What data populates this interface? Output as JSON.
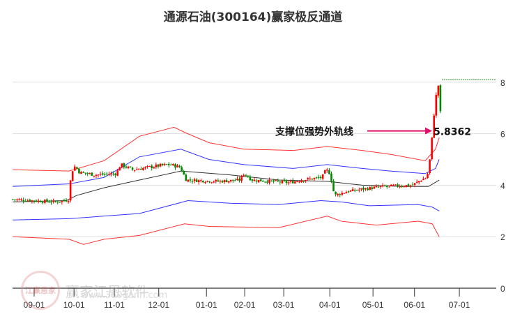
{
  "chart_data": {
    "type": "candlestick",
    "title": "通源石油(300164)赢家极反通道",
    "x_unit": "months since 09-01",
    "xticks": [
      {
        "t": 0,
        "label": "09-01"
      },
      {
        "t": 0.97,
        "label": "10-01"
      },
      {
        "t": 1.95,
        "label": "11-01"
      },
      {
        "t": 3.03,
        "label": "12-01"
      },
      {
        "t": 4.19,
        "label": "01-01"
      },
      {
        "t": 5.12,
        "label": "02-01"
      },
      {
        "t": 6.07,
        "label": "03-01"
      },
      {
        "t": 7.19,
        "label": "04-01"
      },
      {
        "t": 8.24,
        "label": "05-01"
      },
      {
        "t": 9.25,
        "label": "06-01"
      },
      {
        "t": 10.34,
        "label": "07-01"
      }
    ],
    "yticks": [
      0,
      2,
      4,
      6,
      8
    ],
    "ylim": [
      0,
      8.9
    ],
    "close_keypoints": [
      [
        -0.52,
        3.45
      ],
      [
        0,
        3.4
      ],
      [
        0.5,
        3.35
      ],
      [
        0.75,
        3.4
      ],
      [
        0.85,
        3.45
      ],
      [
        0.9,
        4.5
      ],
      [
        1.0,
        4.75
      ],
      [
        1.1,
        4.5
      ],
      [
        1.5,
        4.4
      ],
      [
        2.0,
        4.45
      ],
      [
        2.1,
        4.8
      ],
      [
        2.4,
        4.6
      ],
      [
        3.0,
        4.75
      ],
      [
        3.3,
        4.8
      ],
      [
        3.55,
        4.7
      ],
      [
        3.7,
        4.2
      ],
      [
        4.5,
        4.15
      ],
      [
        5.0,
        4.2
      ],
      [
        5.1,
        4.45
      ],
      [
        5.3,
        4.2
      ],
      [
        6.2,
        4.1
      ],
      [
        6.5,
        4.2
      ],
      [
        7.0,
        4.3
      ],
      [
        7.1,
        4.6
      ],
      [
        7.2,
        4.45
      ],
      [
        7.3,
        3.6
      ],
      [
        7.6,
        3.75
      ],
      [
        8.0,
        3.85
      ],
      [
        8.5,
        3.95
      ],
      [
        9.2,
        4.0
      ],
      [
        9.4,
        4.2
      ],
      [
        9.55,
        4.3
      ],
      [
        9.6,
        4.7
      ],
      [
        9.65,
        5.4
      ],
      [
        9.7,
        6.3
      ],
      [
        9.75,
        7.3
      ],
      [
        9.8,
        7.6
      ],
      [
        9.85,
        8.1
      ],
      [
        9.88,
        6.8
      ]
    ],
    "channel": {
      "outer_upper": [
        [
          -0.52,
          4.6
        ],
        [
          0.85,
          4.55
        ],
        [
          1.7,
          4.95
        ],
        [
          2.56,
          5.9
        ],
        [
          3.4,
          6.25
        ],
        [
          3.66,
          6.05
        ],
        [
          4.25,
          5.65
        ],
        [
          5.1,
          5.4
        ],
        [
          6.3,
          5.35
        ],
        [
          7.13,
          5.5
        ],
        [
          7.98,
          5.35
        ],
        [
          8.66,
          5.2
        ],
        [
          9.51,
          4.95
        ],
        [
          9.76,
          5.4
        ],
        [
          9.85,
          5.85
        ]
      ],
      "inner_upper": [
        [
          -0.52,
          3.95
        ],
        [
          0.85,
          4.05
        ],
        [
          1.7,
          4.3
        ],
        [
          2.56,
          5.1
        ],
        [
          3.57,
          5.4
        ],
        [
          4.25,
          5.0
        ],
        [
          5.1,
          4.8
        ],
        [
          6.3,
          4.65
        ],
        [
          7.13,
          4.8
        ],
        [
          7.98,
          4.65
        ],
        [
          8.66,
          4.55
        ],
        [
          9.51,
          4.45
        ],
        [
          9.76,
          4.65
        ],
        [
          9.85,
          5.0
        ]
      ],
      "middle": [
        [
          -0.52,
          3.35
        ],
        [
          0.78,
          3.4
        ],
        [
          1.03,
          3.6
        ],
        [
          1.7,
          3.9
        ],
        [
          2.56,
          4.2
        ],
        [
          3.57,
          4.55
        ],
        [
          4.76,
          4.4
        ],
        [
          5.95,
          4.2
        ],
        [
          7.13,
          4.15
        ],
        [
          7.98,
          4.0
        ],
        [
          9.0,
          3.95
        ],
        [
          9.59,
          3.95
        ],
        [
          9.85,
          4.2
        ]
      ],
      "inner_lower": [
        [
          -0.52,
          2.65
        ],
        [
          0.85,
          2.7
        ],
        [
          1.7,
          2.8
        ],
        [
          2.56,
          2.9
        ],
        [
          3.74,
          3.4
        ],
        [
          4.76,
          3.3
        ],
        [
          5.95,
          3.25
        ],
        [
          6.97,
          3.4
        ],
        [
          7.47,
          3.35
        ],
        [
          8.15,
          3.2
        ],
        [
          9.34,
          3.25
        ],
        [
          9.68,
          3.15
        ],
        [
          9.85,
          3.0
        ]
      ],
      "outer_lower": [
        [
          -0.52,
          2.0
        ],
        [
          0.85,
          1.9
        ],
        [
          1.2,
          1.7
        ],
        [
          1.7,
          1.9
        ],
        [
          2.56,
          2.05
        ],
        [
          3.66,
          2.5
        ],
        [
          4.25,
          2.4
        ],
        [
          5.95,
          2.35
        ],
        [
          7.13,
          2.8
        ],
        [
          7.47,
          2.6
        ],
        [
          8.32,
          2.45
        ],
        [
          9.34,
          2.6
        ],
        [
          9.68,
          2.5
        ],
        [
          9.85,
          2.0
        ]
      ]
    },
    "annotation": {
      "label": "支撑位强势外轨线",
      "value": "5.8362",
      "t": 9.7,
      "y": 5.8362
    },
    "max_line": 8.1,
    "colors": {
      "up": "#ff0000",
      "down": "#008800",
      "outer": "#ff3333",
      "inner": "#3333ff",
      "middle": "#333333",
      "arrow": "#e0106a",
      "maxline": "#228822"
    }
  },
  "watermark": {
    "brand": "赢家江恩软件",
    "url": "www.360gann.com",
    "logo": "江赢恩家"
  }
}
